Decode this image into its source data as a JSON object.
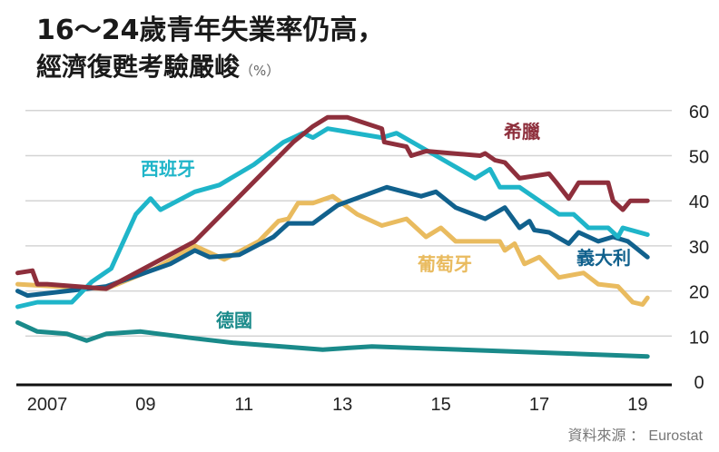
{
  "title_line1": "16～24歲青年失業率仍高，",
  "title_line2": "經濟復甦考驗嚴峻",
  "unit": "（%）",
  "source": "資料來源 ： Eurostat",
  "chart_data": {
    "type": "line",
    "title": "16～24歲青年失業率仍高，經濟復甦考驗嚴峻",
    "ylabel": "%",
    "ylim": [
      0,
      60
    ],
    "xlim": [
      2006.4,
      2019.3
    ],
    "yticks": [
      0,
      10,
      20,
      30,
      40,
      50,
      60
    ],
    "xticks": [
      2007,
      2009,
      2011,
      2013,
      2015,
      2017,
      2019
    ],
    "xtick_labels": [
      "2007",
      "09",
      "11",
      "13",
      "15",
      "17",
      "19"
    ],
    "grid": "horizontal",
    "legend": "inline labels",
    "series": [
      {
        "name": "希臘",
        "color": "#8e2f3c",
        "x": [
          2006.4,
          2006.7,
          2006.8,
          2007.0,
          2008.2,
          2010.0,
          2011.0,
          2012.0,
          2012.4,
          2012.7,
          2013.1,
          2013.8,
          2013.85,
          2014.3,
          2014.4,
          2014.7,
          2015.8,
          2015.9,
          2016.1,
          2016.3,
          2016.6,
          2017.2,
          2017.35,
          2017.6,
          2017.8,
          2018.4,
          2018.5,
          2018.7,
          2018.85,
          2019.2
        ],
        "values": [
          24,
          24.5,
          21.5,
          21.5,
          20.5,
          31,
          42,
          53,
          56.5,
          58.5,
          58.5,
          56,
          53,
          52,
          50,
          51,
          50,
          50.5,
          49,
          48.5,
          45,
          46,
          44,
          40.5,
          44,
          44,
          40,
          38,
          40,
          40
        ]
      },
      {
        "name": "西班牙",
        "color": "#1fb5c9",
        "x": [
          2006.4,
          2006.8,
          2007.5,
          2007.9,
          2008.3,
          2008.8,
          2009.1,
          2009.3,
          2010.0,
          2010.5,
          2011.2,
          2011.8,
          2012.2,
          2012.4,
          2012.7,
          2013.8,
          2014.1,
          2014.9,
          2015.7,
          2016.0,
          2016.2,
          2016.6,
          2017.4,
          2017.7,
          2018.0,
          2018.4,
          2018.6,
          2018.7,
          2019.2
        ],
        "values": [
          16.5,
          17.5,
          17.5,
          22,
          25,
          37,
          40.5,
          38,
          42,
          43.5,
          48,
          53,
          55,
          54,
          56,
          54,
          55,
          50,
          45,
          47,
          43,
          43,
          37,
          37,
          34,
          34,
          32,
          34,
          32.5
        ]
      },
      {
        "name": "義大利",
        "color": "#11618d",
        "x": [
          2006.4,
          2006.6,
          2008.2,
          2009.5,
          2010.0,
          2010.3,
          2010.9,
          2011.6,
          2011.9,
          2012.4,
          2012.9,
          2013.9,
          2014.6,
          2014.9,
          2015.3,
          2015.9,
          2016.3,
          2016.6,
          2016.8,
          2016.9,
          2017.2,
          2017.6,
          2017.8,
          2018.2,
          2018.5,
          2018.8,
          2019.2
        ],
        "values": [
          20,
          19,
          21,
          26,
          29,
          27.5,
          28,
          32,
          35,
          35,
          39,
          43,
          41,
          42,
          38.5,
          36,
          38.5,
          34,
          35.5,
          33.5,
          33,
          30.5,
          33,
          31,
          32,
          31,
          27.5
        ]
      },
      {
        "name": "葡萄牙",
        "color": "#e9bb5f",
        "x": [
          2006.4,
          2007.2,
          2008.2,
          2009.2,
          2010.0,
          2010.6,
          2011.3,
          2011.7,
          2011.9,
          2012.1,
          2012.4,
          2012.8,
          2013.3,
          2013.8,
          2014.3,
          2014.7,
          2015.0,
          2015.3,
          2016.2,
          2016.3,
          2016.5,
          2016.7,
          2017.0,
          2017.4,
          2017.9,
          2018.2,
          2018.6,
          2018.9,
          2019.1,
          2019.2
        ],
        "values": [
          21.5,
          21,
          20.5,
          25,
          30,
          27,
          31,
          35.5,
          36,
          39.5,
          39.5,
          41,
          37,
          34.5,
          36,
          32,
          34,
          31,
          31,
          29,
          30.5,
          26,
          27.5,
          23,
          24,
          21.5,
          21,
          17.5,
          17,
          18.5
        ]
      },
      {
        "name": "德國",
        "color": "#1a8a8a",
        "x": [
          2006.4,
          2006.8,
          2007.4,
          2007.8,
          2008.2,
          2008.9,
          2010.0,
          2010.8,
          2012.6,
          2013.6,
          2019.2
        ],
        "values": [
          13,
          11,
          10.5,
          9,
          10.5,
          11,
          9.5,
          8.5,
          7,
          7.7,
          5.5
        ]
      }
    ]
  }
}
